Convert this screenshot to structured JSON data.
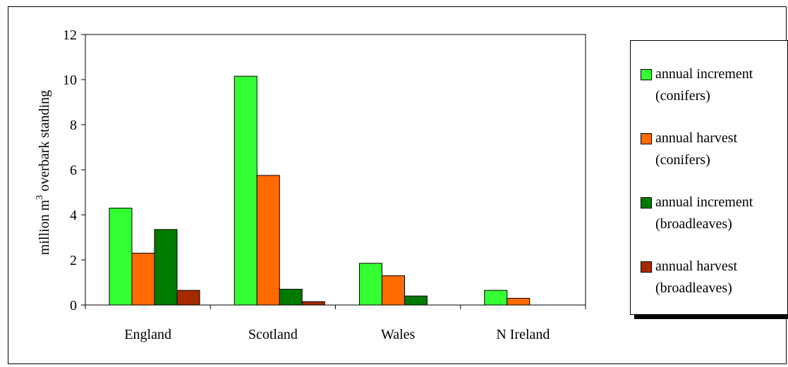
{
  "chart_data": {
    "type": "bar",
    "categories": [
      "England",
      "Scotland",
      "Wales",
      "N Ireland"
    ],
    "series": [
      {
        "name": "annual increment (conifers)",
        "color": "#33ff33",
        "values": [
          4.3,
          10.15,
          1.85,
          0.65
        ]
      },
      {
        "name": "annual harvest (conifers)",
        "color": "#ff6a00",
        "values": [
          2.3,
          5.75,
          1.3,
          0.3
        ]
      },
      {
        "name": "annual increment (broadleaves)",
        "color": "#007a00",
        "values": [
          3.35,
          0.7,
          0.4,
          0
        ]
      },
      {
        "name": "annual harvest (broadleaves)",
        "color": "#a52a00",
        "values": [
          0.65,
          0.15,
          0,
          0
        ]
      }
    ],
    "ylabel": "million m",
    "ylabel_superscript": "3",
    "ylabel_suffix": " overbark standing",
    "ylim": [
      0,
      12
    ],
    "yticks": [
      0,
      2,
      4,
      6,
      8,
      10,
      12
    ],
    "grid": false,
    "legend_position": "right"
  },
  "legend": {
    "items": [
      {
        "line1": "annual increment",
        "line2": "(conifers)",
        "color": "#33ff33"
      },
      {
        "line1": "annual harvest",
        "line2": "(conifers)",
        "color": "#ff6a00"
      },
      {
        "line1": "annual increment",
        "line2": "(broadleaves)",
        "color": "#007a00"
      },
      {
        "line1": "annual harvest",
        "line2": "(broadleaves)",
        "color": "#a52a00"
      }
    ]
  }
}
